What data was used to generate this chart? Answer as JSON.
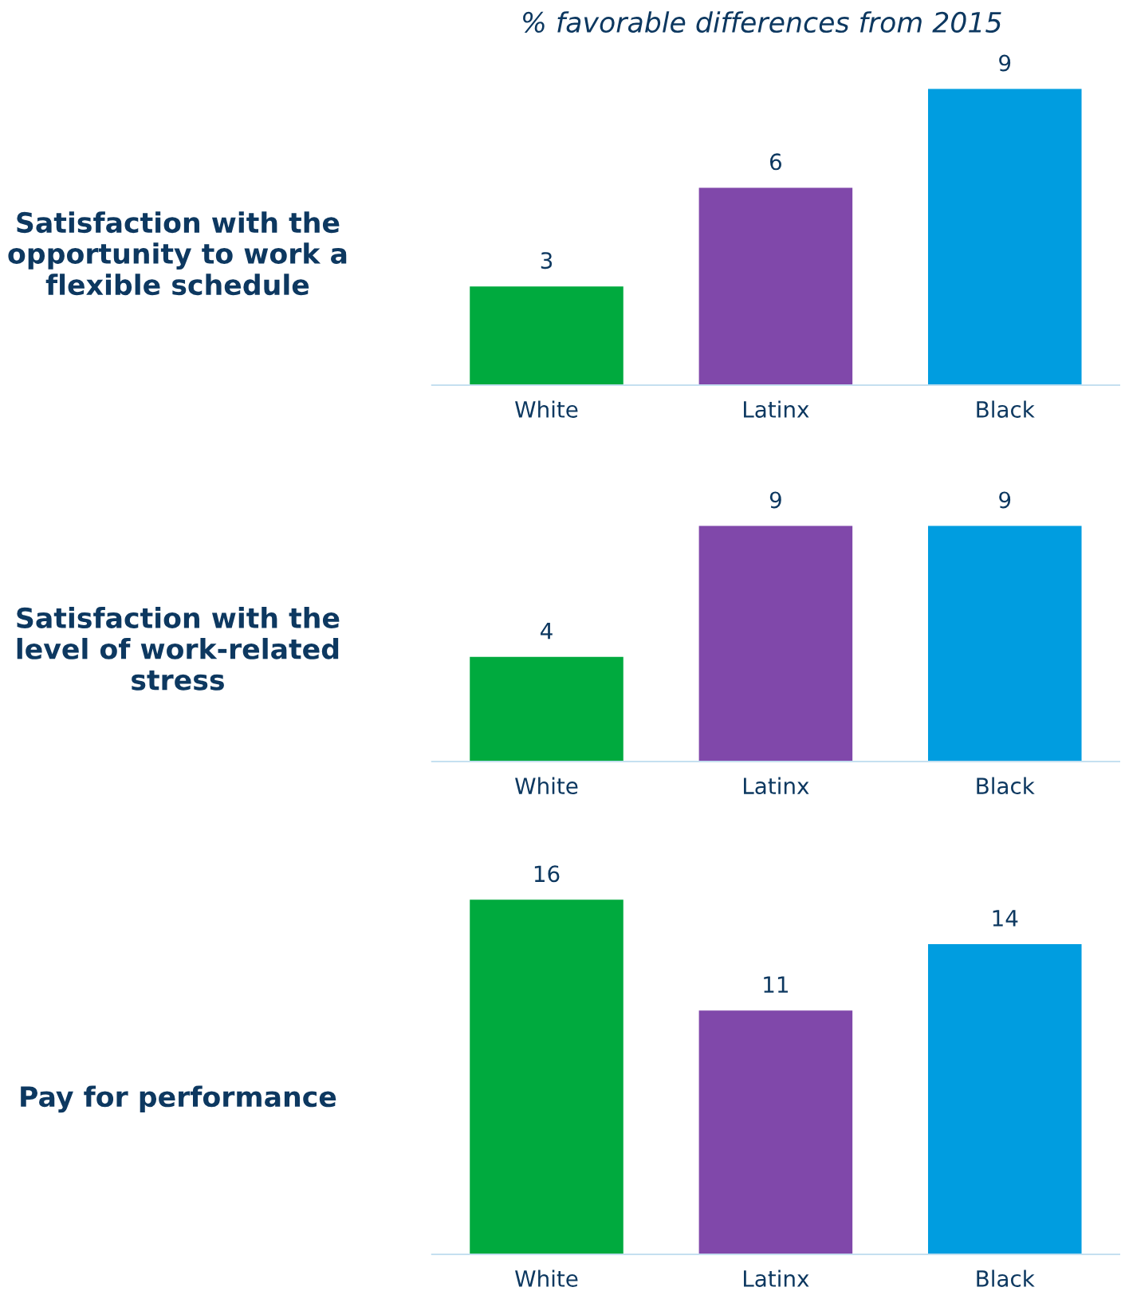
{
  "chart_data": [
    {
      "type": "bar",
      "subtitle": "% favorable differences from 2015",
      "title": "Satisfaction with the opportunity to work a flexible schedule",
      "categories": [
        "White",
        "Latinx",
        "Black"
      ],
      "values": [
        3,
        6,
        9
      ],
      "colors": [
        "#00aa3e",
        "#8048aa",
        "#009de0"
      ],
      "data_labels": true
    },
    {
      "type": "bar",
      "title": "Satisfaction with the level of work-related stress",
      "categories": [
        "White",
        "Latinx",
        "Black"
      ],
      "values": [
        4,
        9,
        9
      ],
      "colors": [
        "#00aa3e",
        "#8048aa",
        "#009de0"
      ],
      "data_labels": true
    },
    {
      "type": "bar",
      "title": "Pay for performance",
      "categories": [
        "White",
        "Latinx",
        "Black"
      ],
      "values": [
        16,
        11,
        14
      ],
      "colors": [
        "#00aa3e",
        "#8048aa",
        "#009de0"
      ],
      "data_labels": true
    }
  ]
}
